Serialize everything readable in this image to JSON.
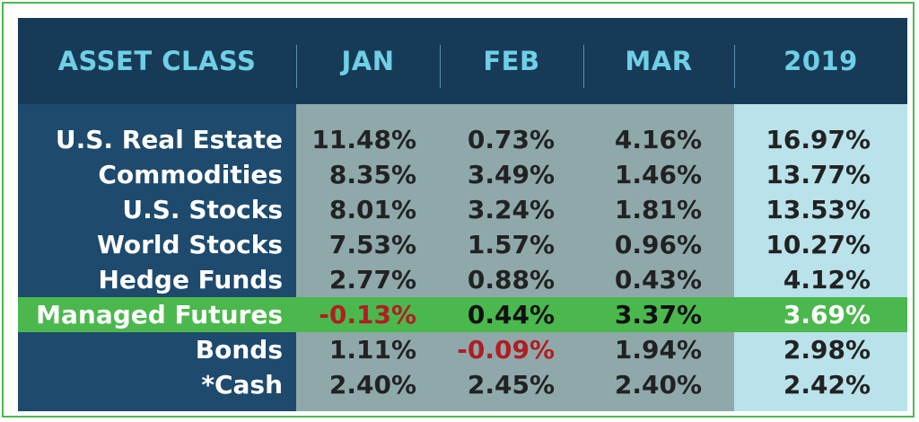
{
  "chart_data": {
    "type": "table",
    "columns": [
      "ASSET CLASS",
      "JAN",
      "FEB",
      "MAR",
      "2019"
    ],
    "rows": [
      {
        "label": "U.S. Real Estate",
        "values": [
          "11.48%",
          "0.73%",
          "4.16%",
          "16.97%"
        ],
        "highlight": false,
        "negative": [
          false,
          false,
          false,
          false
        ]
      },
      {
        "label": "Commodities",
        "values": [
          "8.35%",
          "3.49%",
          "1.46%",
          "13.77%"
        ],
        "highlight": false,
        "negative": [
          false,
          false,
          false,
          false
        ]
      },
      {
        "label": "U.S. Stocks",
        "values": [
          "8.01%",
          "3.24%",
          "1.81%",
          "13.53%"
        ],
        "highlight": false,
        "negative": [
          false,
          false,
          false,
          false
        ]
      },
      {
        "label": "World Stocks",
        "values": [
          "7.53%",
          "1.57%",
          "0.96%",
          "10.27%"
        ],
        "highlight": false,
        "negative": [
          false,
          false,
          false,
          false
        ]
      },
      {
        "label": "Hedge Funds",
        "values": [
          "2.77%",
          "0.88%",
          "0.43%",
          "4.12%"
        ],
        "highlight": false,
        "negative": [
          false,
          false,
          false,
          false
        ]
      },
      {
        "label": "Managed Futures",
        "values": [
          "-0.13%",
          "0.44%",
          "3.37%",
          "3.69%"
        ],
        "highlight": true,
        "negative": [
          true,
          false,
          false,
          false
        ]
      },
      {
        "label": "Bonds",
        "values": [
          "1.11%",
          "-0.09%",
          "1.94%",
          "2.98%"
        ],
        "highlight": false,
        "negative": [
          false,
          true,
          false,
          false
        ]
      },
      {
        "label": "*Cash",
        "values": [
          "2.40%",
          "2.45%",
          "2.40%",
          "2.42%"
        ],
        "highlight": false,
        "negative": [
          false,
          false,
          false,
          false
        ]
      }
    ]
  },
  "colors": {
    "header_text": "#6fcfe6",
    "panel_dark": "#173b57",
    "label_column": "#1e4a6d",
    "month_columns": "#8fa9ab",
    "year_column": "#b9e2ea",
    "highlight_row": "#4bb84d",
    "negative_text": "#b01e22",
    "border": "#4bb84d"
  }
}
